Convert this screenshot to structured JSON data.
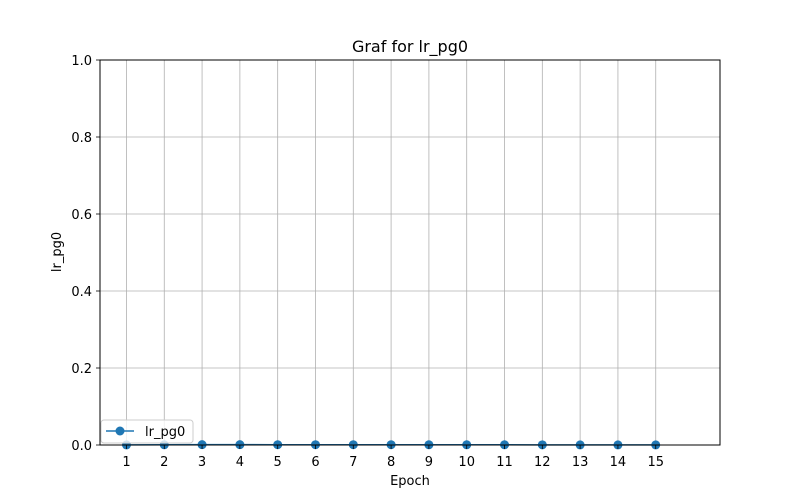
{
  "chart_data": {
    "type": "line",
    "title": "Graf for lr_pg0",
    "xlabel": "Epoch",
    "ylabel": "lr_pg0",
    "x": [
      1,
      2,
      3,
      4,
      5,
      6,
      7,
      8,
      9,
      10,
      11,
      12,
      13,
      14,
      15
    ],
    "xticks": [
      "1",
      "2",
      "3",
      "4",
      "5",
      "6",
      "7",
      "8",
      "9",
      "10",
      "11",
      "12",
      "13",
      "14",
      "15"
    ],
    "xlim": [
      0.3,
      16.7
    ],
    "ylim": [
      0.0,
      1.0
    ],
    "yticks": [
      "0.0",
      "0.2",
      "0.4",
      "0.6",
      "0.8",
      "1.0"
    ],
    "grid": true,
    "legend_position": "lower-left",
    "series": [
      {
        "name": "lr_pg0",
        "color": "#1f77b4",
        "marker": "circle",
        "values": [
          0.0003,
          0.0006,
          0.0009,
          0.0009,
          0.0008,
          0.0008,
          0.0007,
          0.0007,
          0.0006,
          0.0005,
          0.0005,
          0.0004,
          0.0003,
          0.0003,
          0.0002
        ]
      }
    ]
  }
}
